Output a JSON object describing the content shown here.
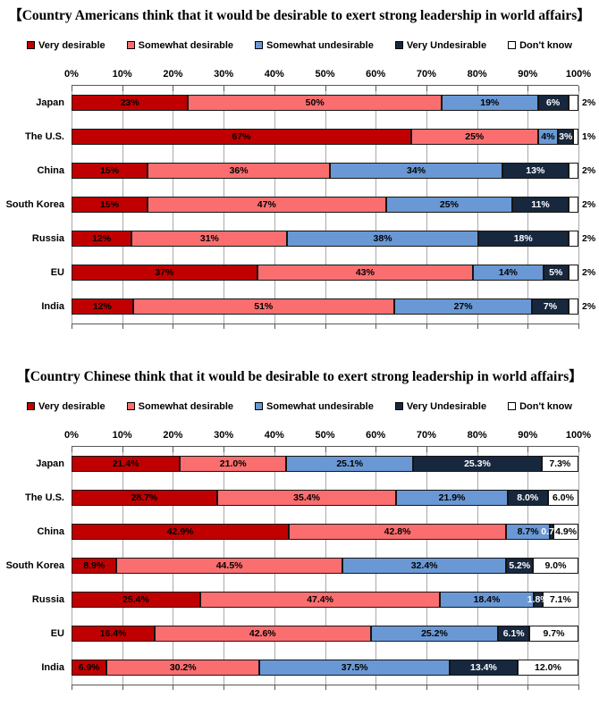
{
  "chart_data": [
    {
      "type": "bar",
      "orientation": "horizontal-stacked",
      "title": "【Country Americans think that it would be desirable to exert strong leadership in world affairs】",
      "legend_position": "top",
      "grid": true,
      "xlim": [
        0,
        100
      ],
      "tick_labels": [
        "0%",
        "10%",
        "20%",
        "30%",
        "40%",
        "50%",
        "60%",
        "70%",
        "80%",
        "90%",
        "100%"
      ],
      "label_decimals": 0,
      "categories": [
        "Japan",
        "The U.S.",
        "China",
        "South Korea",
        "Russia",
        "EU",
        "India"
      ],
      "series": [
        {
          "name": "Very desirable",
          "color": "#c00000",
          "label_color": "#000000",
          "values": [
            23,
            67,
            15,
            15,
            12,
            37,
            12
          ]
        },
        {
          "name": "Somewhat desirable",
          "color": "#fa6e6f",
          "label_color": "#000000",
          "values": [
            50,
            25,
            36,
            47,
            31,
            43,
            51
          ]
        },
        {
          "name": "Somewhat undesirable",
          "color": "#6a98d4",
          "label_color": "#000000",
          "values": [
            19,
            4,
            34,
            25,
            38,
            14,
            27
          ]
        },
        {
          "name": "Very Undesirable",
          "color": "#17283e",
          "label_color": "#ffffff",
          "values": [
            6,
            3,
            13,
            11,
            18,
            5,
            7
          ]
        },
        {
          "name": "Don't know",
          "color": "#ffffff",
          "label_color": "#000000",
          "values": [
            2,
            1,
            2,
            2,
            2,
            2,
            2
          ]
        }
      ]
    },
    {
      "type": "bar",
      "orientation": "horizontal-stacked",
      "title": "【Country Chinese think that it would be desirable to exert strong leadership in world affairs】",
      "legend_position": "top",
      "grid": true,
      "xlim": [
        0,
        100
      ],
      "tick_labels": [
        "0%",
        "10%",
        "20%",
        "30%",
        "40%",
        "50%",
        "60%",
        "70%",
        "80%",
        "90%",
        "100%"
      ],
      "label_decimals": 1,
      "categories": [
        "Japan",
        "The U.S.",
        "China",
        "South Korea",
        "Russia",
        "EU",
        "India"
      ],
      "series": [
        {
          "name": "Very desirable",
          "color": "#c00000",
          "label_color": "#000000",
          "values": [
            21.4,
            28.7,
            42.9,
            8.9,
            25.4,
            16.4,
            6.9
          ]
        },
        {
          "name": "Somewhat desirable",
          "color": "#fa6e6f",
          "label_color": "#000000",
          "values": [
            21.0,
            35.4,
            42.8,
            44.5,
            47.4,
            42.6,
            30.2
          ]
        },
        {
          "name": "Somewhat undesirable",
          "color": "#6a98d4",
          "label_color": "#000000",
          "values": [
            25.1,
            21.9,
            8.7,
            32.4,
            18.4,
            25.2,
            37.5
          ]
        },
        {
          "name": "Very Undesirable",
          "color": "#17283e",
          "label_color": "#ffffff",
          "values": [
            25.3,
            8.0,
            0.7,
            5.2,
            1.8,
            6.1,
            13.4
          ]
        },
        {
          "name": "Don't know",
          "color": "#ffffff",
          "label_color": "#000000",
          "values": [
            7.3,
            6.0,
            4.9,
            9.0,
            7.1,
            9.7,
            12.0
          ]
        }
      ]
    }
  ]
}
